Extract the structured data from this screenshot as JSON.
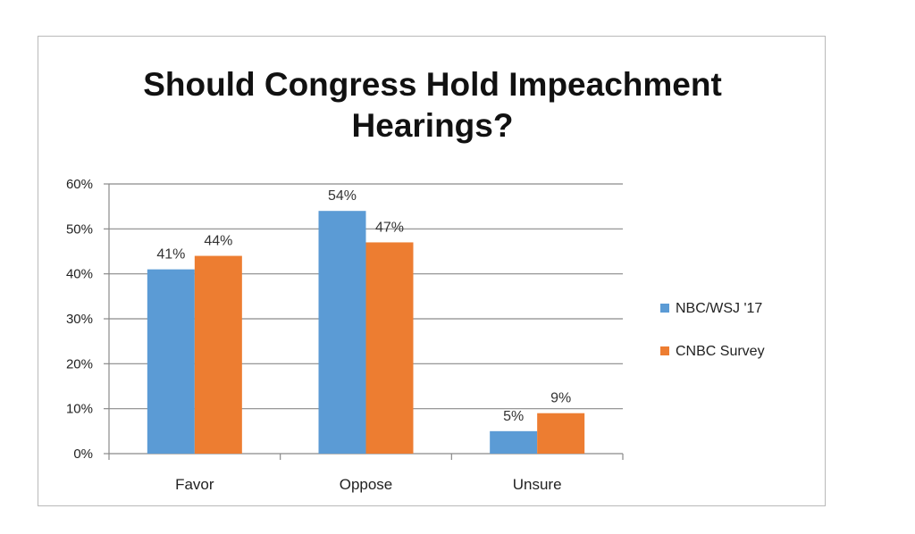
{
  "chart_data": {
    "type": "bar",
    "title_line1": "Should Congress Hold Impeachment",
    "title_line2": "Hearings?",
    "categories": [
      "Favor",
      "Oppose",
      "Unsure"
    ],
    "series": [
      {
        "name": "NBC/WSJ '17",
        "values": [
          41,
          54,
          5
        ],
        "labels": [
          "41%",
          "54%",
          "5%"
        ],
        "color": "#5b9bd5"
      },
      {
        "name": "CNBC Survey",
        "values": [
          44,
          47,
          9
        ],
        "labels": [
          "44%",
          "47%",
          "9%"
        ],
        "color": "#ed7d31"
      }
    ],
    "ylim": [
      0,
      60
    ],
    "yticks": [
      0,
      10,
      20,
      30,
      40,
      50,
      60
    ],
    "ytick_labels": [
      "0%",
      "10%",
      "20%",
      "30%",
      "40%",
      "50%",
      "60%"
    ],
    "grid": true,
    "legend_position": "right",
    "xlabel": "",
    "ylabel": ""
  }
}
